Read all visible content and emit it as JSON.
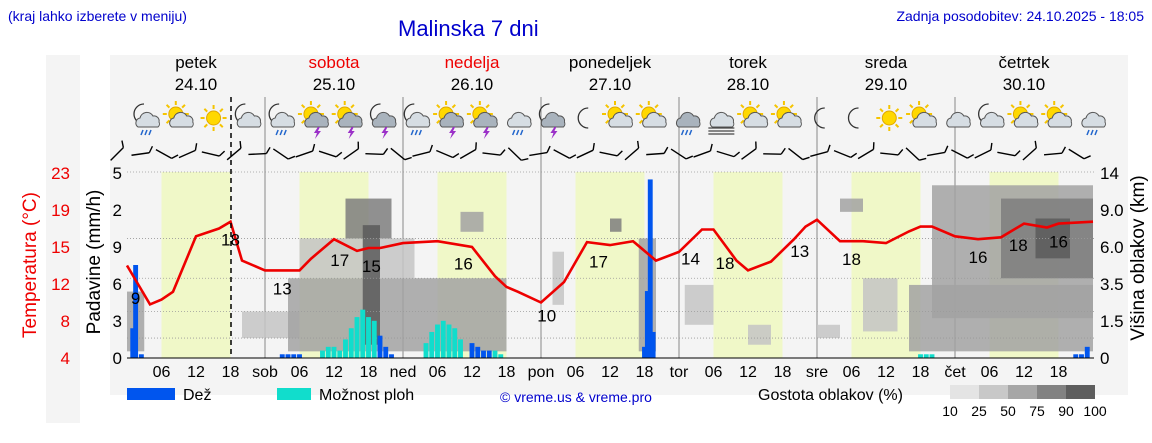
{
  "header": {
    "location_hint": "(kraj lahko izberete v meniju)",
    "title": "Malinska 7 dni",
    "updated": "Zadnja posodobitev: 24.10.2025 - 18:05"
  },
  "days": [
    {
      "name": "petek",
      "date": "24.10",
      "weekend": false
    },
    {
      "name": "sobota",
      "date": "25.10",
      "weekend": true
    },
    {
      "name": "nedelja",
      "date": "26.10",
      "weekend": true
    },
    {
      "name": "ponedeljek",
      "date": "27.10",
      "weekend": false
    },
    {
      "name": "torek",
      "date": "28.10",
      "weekend": false
    },
    {
      "name": "sreda",
      "date": "29.10",
      "weekend": false
    },
    {
      "name": "četrtek",
      "date": "30.10",
      "weekend": false
    }
  ],
  "day_abbr": [
    "sob",
    "ned",
    "pon",
    "tor",
    "sre",
    "čet"
  ],
  "hour_ticks": [
    "06",
    "12",
    "18"
  ],
  "weather_icons": [
    "moon-rain-icon",
    "sun-cloud-icon",
    "sun-icon",
    "moon-cloud-icon",
    "moon-rain-icon",
    "sun-storm-icon",
    "sun-storm-icon",
    "moon-storm-icon",
    "moon-rain-icon",
    "sun-storm-icon",
    "sun-storm-icon",
    "cloud-rain-icon",
    "moon-storm-icon",
    "moon-icon",
    "sun-cloud-icon",
    "sun-cloud-icon",
    "cloud-heavy-rain-icon",
    "fog-icon",
    "sun-cloud-icon",
    "sun-cloud-icon",
    "moon-icon",
    "moon-icon",
    "sun-icon",
    "sun-cloud-icon",
    "cloud-icon",
    "moon-cloud-icon",
    "sun-cloud-icon",
    "cloud-sun-icon",
    "cloud-rain-icon"
  ],
  "axes": {
    "temp_label": "Temperatura (°C)",
    "temp_ticks": [
      "23",
      "19",
      "15",
      "12",
      "8",
      "4"
    ],
    "precip_label": "Padavine (mm/h)",
    "precip_ticks": [
      "5",
      "2",
      "9",
      "6",
      "3",
      "0"
    ],
    "cloud_label": "Višina oblakov (km)",
    "cloud_ticks": [
      "14",
      "9.0",
      "6.0",
      "3.5",
      "1.5",
      "0"
    ]
  },
  "legend": {
    "rain": "Dež",
    "showers": "Možnost ploh",
    "source": "© vreme.us & vreme.pro",
    "density_label": "Gostota oblakov (%)",
    "density_steps": [
      "10",
      "25",
      "50",
      "75",
      "90",
      "100"
    ]
  },
  "colors": {
    "header": "#0000cc",
    "weekend": "#ee0000",
    "temp_line": "#ee0000",
    "rain": "#0055ee",
    "showers": "#11ddcc",
    "daylight": "#f0f8c8"
  },
  "chart_data": {
    "type": "line",
    "title": "Malinska 7 dni",
    "x_unit": "hours since 24.10 00:00",
    "xlim": [
      0,
      168
    ],
    "ylim_temp": [
      4,
      23
    ],
    "temperature": {
      "x": [
        0,
        4,
        6,
        8,
        12,
        16,
        18,
        20,
        24,
        30,
        32,
        36,
        40,
        42,
        44,
        48,
        54,
        60,
        64,
        66,
        68,
        72,
        76,
        80,
        84,
        88,
        92,
        96,
        100,
        102,
        106,
        108,
        112,
        116,
        118,
        120,
        124,
        128,
        132,
        136,
        138,
        140,
        144,
        148,
        152,
        156,
        160,
        162,
        168
      ],
      "y": [
        13.5,
        9.5,
        10,
        10.8,
        16.5,
        17.3,
        18,
        14,
        13,
        13,
        14.2,
        16.2,
        15,
        15.3,
        15.3,
        15.8,
        16,
        15.4,
        12.4,
        11.3,
        10.8,
        9.7,
        11.8,
        15.9,
        15.6,
        16,
        14,
        14.9,
        17.2,
        17.2,
        14,
        13,
        13.9,
        16.2,
        17.5,
        18.2,
        16,
        16,
        15.8,
        17,
        17.5,
        17.5,
        16.5,
        16.2,
        16.4,
        17.8,
        17.4,
        17.8,
        18
      ]
    },
    "temp_labels": [
      {
        "x": 1.5,
        "label": "9"
      },
      {
        "x": 18,
        "label": "18"
      },
      {
        "x": 27,
        "label": "13"
      },
      {
        "x": 37,
        "label": "17"
      },
      {
        "x": 42.5,
        "label": "15"
      },
      {
        "x": 58.5,
        "label": "16"
      },
      {
        "x": 73,
        "label": "10"
      },
      {
        "x": 82,
        "label": "17"
      },
      {
        "x": 98,
        "label": "14"
      },
      {
        "x": 104,
        "label": "18"
      },
      {
        "x": 117,
        "label": "13"
      },
      {
        "x": 126,
        "label": "18"
      },
      {
        "x": 148,
        "label": "16"
      },
      {
        "x": 155,
        "label": "18"
      },
      {
        "x": 162,
        "label": "16"
      }
    ],
    "rain_bars": [
      {
        "x": 1,
        "v": 0.8
      },
      {
        "x": 1.5,
        "v": 2.5
      },
      {
        "x": 2.5,
        "v": 0.1
      },
      {
        "x": 27,
        "v": 0.1
      },
      {
        "x": 28,
        "v": 0.1
      },
      {
        "x": 29,
        "v": 0.1
      },
      {
        "x": 30,
        "v": 0.1
      },
      {
        "x": 44,
        "v": 0.6
      },
      {
        "x": 45,
        "v": 0.3
      },
      {
        "x": 46,
        "v": 0.1
      },
      {
        "x": 60,
        "v": 0.4
      },
      {
        "x": 61,
        "v": 0.3
      },
      {
        "x": 62,
        "v": 0.2
      },
      {
        "x": 63,
        "v": 0.2
      },
      {
        "x": 90,
        "v": 0.3
      },
      {
        "x": 90.5,
        "v": 1.8
      },
      {
        "x": 91,
        "v": 4.8
      },
      {
        "x": 91.5,
        "v": 0.7
      },
      {
        "x": 165,
        "v": 0.1
      },
      {
        "x": 166,
        "v": 0.1
      },
      {
        "x": 167,
        "v": 0.3
      }
    ],
    "shower_bars": [
      {
        "x": 34,
        "v": 0.2
      },
      {
        "x": 35,
        "v": 0.3
      },
      {
        "x": 36,
        "v": 0.3
      },
      {
        "x": 37,
        "v": 0.2
      },
      {
        "x": 38,
        "v": 0.5
      },
      {
        "x": 39,
        "v": 0.8
      },
      {
        "x": 40,
        "v": 1.1
      },
      {
        "x": 41,
        "v": 1.3
      },
      {
        "x": 42,
        "v": 1.1
      },
      {
        "x": 43,
        "v": 1.0
      },
      {
        "x": 52,
        "v": 0.4
      },
      {
        "x": 53,
        "v": 0.7
      },
      {
        "x": 54,
        "v": 0.9
      },
      {
        "x": 55,
        "v": 1.0
      },
      {
        "x": 56,
        "v": 0.9
      },
      {
        "x": 57,
        "v": 0.8
      },
      {
        "x": 58,
        "v": 0.5
      },
      {
        "x": 64,
        "v": 0.2
      },
      {
        "x": 65,
        "v": 0.1
      },
      {
        "x": 138,
        "v": 0.1
      },
      {
        "x": 139,
        "v": 0.1
      },
      {
        "x": 140,
        "v": 0.1
      }
    ],
    "clouds": [
      {
        "x0": 0,
        "x1": 3,
        "h0": 0.5,
        "h1": 5,
        "d": 50
      },
      {
        "x0": 20,
        "x1": 30,
        "h0": 1.5,
        "h1": 3.5,
        "d": 25
      },
      {
        "x0": 28,
        "x1": 66,
        "h0": 0.5,
        "h1": 6,
        "d": 50
      },
      {
        "x0": 30,
        "x1": 50,
        "h0": 6,
        "h1": 9,
        "d": 25
      },
      {
        "x0": 38,
        "x1": 46,
        "h0": 9,
        "h1": 12,
        "d": 75
      },
      {
        "x0": 41,
        "x1": 44,
        "h0": 1,
        "h1": 10,
        "d": 90
      },
      {
        "x0": 58,
        "x1": 62,
        "h0": 9.5,
        "h1": 11,
        "d": 50
      },
      {
        "x0": 74,
        "x1": 76,
        "h0": 4,
        "h1": 8,
        "d": 25
      },
      {
        "x0": 84,
        "x1": 86,
        "h0": 9.5,
        "h1": 10.5,
        "d": 75
      },
      {
        "x0": 89,
        "x1": 92,
        "h0": 0.5,
        "h1": 9,
        "d": 50
      },
      {
        "x0": 97,
        "x1": 102,
        "h0": 2.5,
        "h1": 5.5,
        "d": 25
      },
      {
        "x0": 108,
        "x1": 112,
        "h0": 1,
        "h1": 2.5,
        "d": 25
      },
      {
        "x0": 120,
        "x1": 124,
        "h0": 1.5,
        "h1": 2.5,
        "d": 25
      },
      {
        "x0": 124,
        "x1": 128,
        "h0": 11,
        "h1": 12,
        "d": 50
      },
      {
        "x0": 128,
        "x1": 134,
        "h0": 2,
        "h1": 6,
        "d": 25
      },
      {
        "x0": 136,
        "x1": 168,
        "h0": 0.5,
        "h1": 5.5,
        "d": 50
      },
      {
        "x0": 140,
        "x1": 168,
        "h0": 3,
        "h1": 13,
        "d": 50
      },
      {
        "x0": 152,
        "x1": 168,
        "h0": 6,
        "h1": 12,
        "d": 75
      },
      {
        "x0": 158,
        "x1": 164,
        "h0": 7.5,
        "h1": 10.5,
        "d": 90
      }
    ]
  }
}
